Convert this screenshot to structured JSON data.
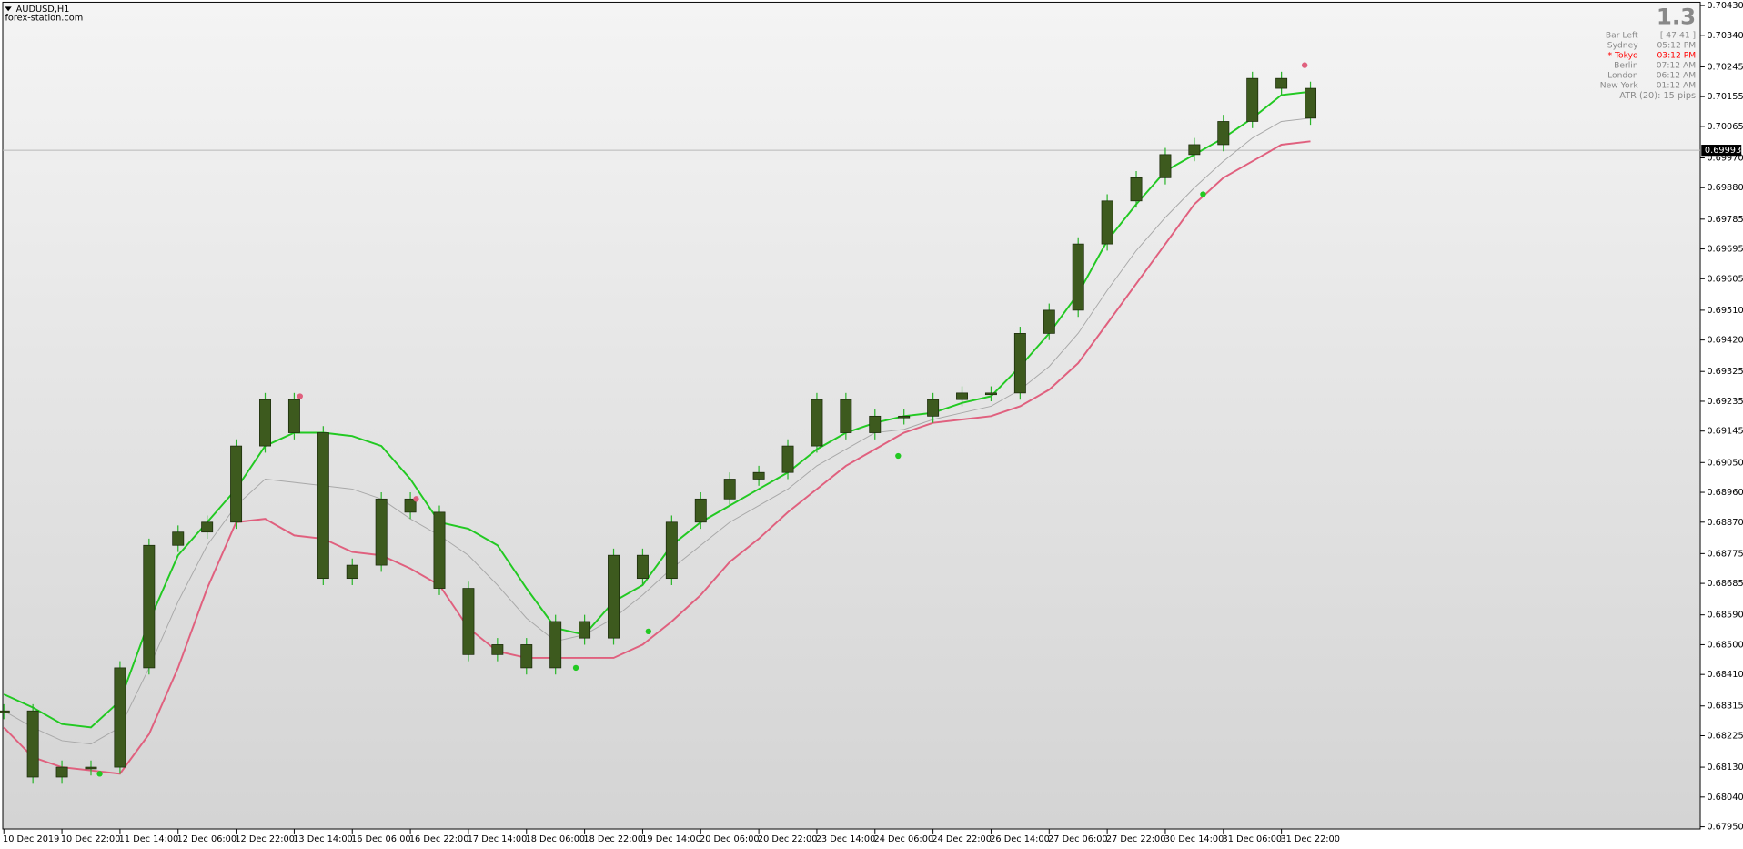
{
  "chart_data": {
    "type": "candlestick",
    "title": "AUDUSD,H1",
    "subtitle": "forex-station.com",
    "ylim": [
      0.6795,
      0.7043
    ],
    "yticks": [
      {
        "value": 0.7043,
        "label": "0.70430"
      },
      {
        "value": 0.7034,
        "label": "0.70340"
      },
      0.70245,
      0.70155,
      0.70065,
      {
        "value": 0.6997,
        "label": "0.69970"
      },
      {
        "value": 0.6988,
        "label": "0.69880"
      },
      0.69785,
      0.69695,
      0.69605,
      {
        "value": 0.6951,
        "label": "0.69510"
      },
      {
        "value": 0.6942,
        "label": "0.69420"
      },
      0.69325,
      0.69235,
      0.69145,
      {
        "value": 0.6905,
        "label": "0.69050"
      },
      {
        "value": 0.6896,
        "label": "0.68960"
      },
      {
        "value": 0.6887,
        "label": "0.68870"
      },
      0.68775,
      0.68685,
      {
        "value": 0.6859,
        "label": "0.68590"
      },
      {
        "value": 0.685,
        "label": "0.68500"
      },
      {
        "value": 0.6841,
        "label": "0.68410"
      },
      0.68315,
      0.68225,
      {
        "value": 0.6813,
        "label": "0.68130"
      },
      {
        "value": 0.6804,
        "label": "0.68040"
      },
      {
        "value": 0.6795,
        "label": "0.67950"
      }
    ],
    "x_labels": [
      "10 Dec 2019",
      "10 Dec 22:00",
      "11 Dec 14:00",
      "12 Dec 06:00",
      "12 Dec 22:00",
      "13 Dec 14:00",
      "16 Dec 06:00",
      "16 Dec 22:00",
      "17 Dec 14:00",
      "18 Dec 06:00",
      "18 Dec 22:00",
      "19 Dec 14:00",
      "20 Dec 06:00",
      "20 Dec 22:00",
      "23 Dec 14:00",
      "24 Dec 06:00",
      "24 Dec 22:00",
      "26 Dec 14:00",
      "27 Dec 06:00",
      "27 Dec 22:00",
      "30 Dec 14:00",
      "31 Dec 06:00",
      "31 Dec 22:00"
    ],
    "close": [
      0.683,
      0.681,
      0.6813,
      0.6813,
      0.6843,
      0.688,
      0.6884,
      0.6887,
      0.691,
      0.6924,
      0.6914,
      0.687,
      0.6874,
      0.6894,
      0.689,
      0.6867,
      0.6847,
      0.685,
      0.6843,
      0.6857,
      0.6852,
      0.6877,
      0.687,
      0.6887,
      0.6894,
      0.69,
      0.6902,
      0.691,
      0.6924,
      0.6914,
      0.6919,
      0.6919,
      0.6924,
      0.6926,
      0.6926,
      0.6944,
      0.6951,
      0.6971,
      0.6984,
      0.6991,
      0.6998,
      0.7001,
      0.7008,
      0.7021,
      0.7018,
      0.7009
    ],
    "candle_color": "#3d5a1e",
    "series": [
      {
        "color": "#22c922",
        "values": [
          0.6835,
          0.6831,
          0.6826,
          0.6825,
          0.6833,
          0.6857,
          0.6877,
          0.6887,
          0.6897,
          0.691,
          0.6914,
          0.6914,
          0.6913,
          0.691,
          0.69,
          0.6887,
          0.6885,
          0.688,
          0.6867,
          0.6855,
          0.6853,
          0.6863,
          0.6868,
          0.688,
          0.6887,
          0.6892,
          0.6897,
          0.6902,
          0.6909,
          0.6914,
          0.6917,
          0.6919,
          0.692,
          0.6923,
          0.6925,
          0.6934,
          0.6944,
          0.6956,
          0.6972,
          0.6983,
          0.6993,
          0.6998,
          0.7003,
          0.7009,
          0.7016,
          0.7017
        ]
      },
      {
        "color": "#a8a8a8",
        "values": [
          0.683,
          0.6825,
          0.6821,
          0.682,
          0.6825,
          0.6843,
          0.6863,
          0.688,
          0.6892,
          0.69,
          0.6899,
          0.6898,
          0.6897,
          0.6894,
          0.6888,
          0.6883,
          0.6877,
          0.6868,
          0.6858,
          0.6851,
          0.6853,
          0.6858,
          0.6865,
          0.6873,
          0.688,
          0.6887,
          0.6892,
          0.6897,
          0.6904,
          0.6909,
          0.6914,
          0.6915,
          0.6918,
          0.692,
          0.6922,
          0.6927,
          0.6934,
          0.6944,
          0.6957,
          0.6969,
          0.6979,
          0.6988,
          0.6996,
          0.7003,
          0.7008,
          0.7009
        ]
      },
      {
        "color": "#e0607e",
        "values": [
          0.6825,
          0.6816,
          0.6813,
          0.6812,
          0.6811,
          0.6823,
          0.6843,
          0.6867,
          0.6887,
          0.6888,
          0.6883,
          0.6882,
          0.6878,
          0.6877,
          0.6873,
          0.6868,
          0.6855,
          0.6848,
          0.6846,
          0.6846,
          0.6846,
          0.6846,
          0.685,
          0.6857,
          0.6865,
          0.6875,
          0.6882,
          0.689,
          0.6897,
          0.6904,
          0.6909,
          0.6914,
          0.6917,
          0.6918,
          0.6919,
          0.6922,
          0.6927,
          0.6935,
          0.6947,
          0.6959,
          0.6971,
          0.6983,
          0.6991,
          0.6996,
          0.7001,
          0.7002
        ]
      }
    ],
    "markers": [
      {
        "color": "#22c922",
        "x": 3.3,
        "value": 0.6811
      },
      {
        "color": "#e0607e",
        "x": 10.2,
        "value": 0.6925
      },
      {
        "color": "#e0607e",
        "x": 14.2,
        "value": 0.6894
      },
      {
        "color": "#22c922",
        "x": 19.7,
        "value": 0.6843
      },
      {
        "color": "#22c922",
        "x": 22.2,
        "value": 0.6854
      },
      {
        "color": "#22c922",
        "x": 30.8,
        "value": 0.6907
      },
      {
        "color": "#22c922",
        "x": 41.3,
        "value": 0.6986
      },
      {
        "color": "#e0607e",
        "x": 44.8,
        "value": 0.7025
      }
    ],
    "current_price": 0.69993,
    "info": {
      "spread": "1.3",
      "rows": [
        {
          "label": "Bar Left",
          "value": "[ 47:41 ]"
        },
        {
          "label": "Sydney",
          "value": "05:12 PM"
        },
        {
          "label": "* Tokyo",
          "value": "03:12 PM",
          "color": "#ff0000"
        },
        {
          "label": "Berlin",
          "value": "07:12 AM"
        },
        {
          "label": "London",
          "value": "06:12 AM"
        },
        {
          "label": "New York",
          "value": "01:12 AM"
        }
      ],
      "atr": "ATR (20): 15 pips"
    }
  }
}
